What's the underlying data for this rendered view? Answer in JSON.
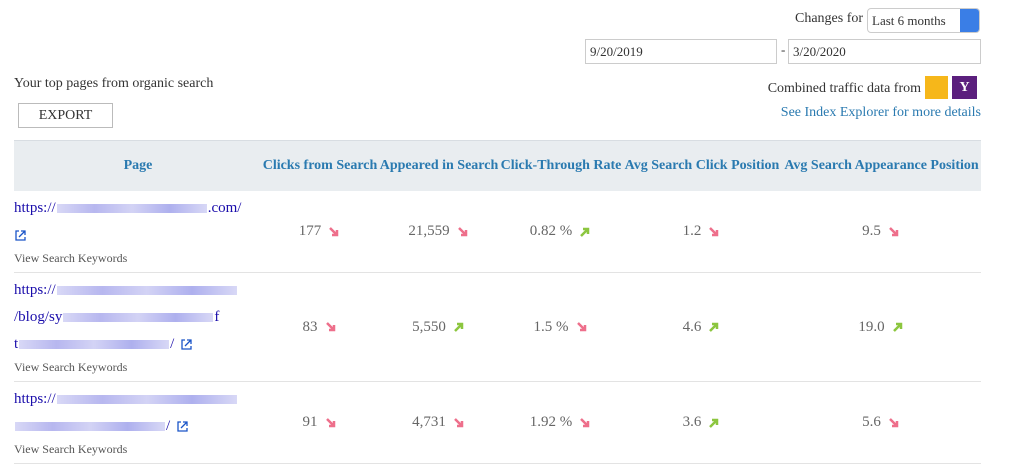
{
  "controls": {
    "changes_for_label": "Changes for",
    "period": "Last 6 months",
    "date_from": "9/20/2019",
    "date_separator": "-",
    "date_to": "3/20/2020"
  },
  "header": {
    "title": "Your top pages from organic search",
    "export": "EXPORT",
    "combined_label": "Combined traffic data from",
    "index_link": "See Index Explorer for more details"
  },
  "table": {
    "columns": [
      "Page",
      "Clicks from Search",
      "Appeared in Search",
      "Click-Through Rate",
      "Avg Search Click Position",
      "Avg Search Appearance Position"
    ],
    "rows": [
      {
        "url_lines": [
          [
            {
              "text": "https://",
              "blur_after": true
            },
            {
              "text": ".com/"
            }
          ]
        ],
        "icon_own_line": true,
        "keywords": "View Search Keywords",
        "cells": [
          {
            "text": "177",
            "trend": "down"
          },
          {
            "text": "21,559",
            "trend": "down"
          },
          {
            "text": "0.82 %",
            "trend": "up"
          },
          {
            "text": "1.2",
            "trend": "down"
          },
          {
            "text": "9.5",
            "trend": "down"
          }
        ]
      },
      {
        "url_lines": [
          [
            {
              "text": "https://",
              "blur_after": true
            }
          ],
          [
            {
              "text": "/blog/sy",
              "blur_after": true
            },
            {
              "text": "f"
            }
          ],
          [
            {
              "text": "t",
              "blur_after": true
            },
            {
              "text": "/"
            }
          ]
        ],
        "icon_own_line": false,
        "keywords": "View Search Keywords",
        "cells": [
          {
            "text": "83",
            "trend": "down"
          },
          {
            "text": "5,550",
            "trend": "up"
          },
          {
            "text": "1.5 %",
            "trend": "down"
          },
          {
            "text": "4.6",
            "trend": "up"
          },
          {
            "text": "19.0",
            "trend": "up"
          }
        ]
      },
      {
        "url_lines": [
          [
            {
              "text": "https://",
              "blur_after": true
            }
          ],
          [
            {
              "text": "/",
              "blur_before": true
            }
          ]
        ],
        "icon_own_line": false,
        "keywords": "View Search Keywords",
        "cells": [
          {
            "text": "91",
            "trend": "down"
          },
          {
            "text": "4,731",
            "trend": "down"
          },
          {
            "text": "1.92 %",
            "trend": "down"
          },
          {
            "text": "3.6",
            "trend": "up"
          },
          {
            "text": "5.6",
            "trend": "down"
          }
        ]
      }
    ]
  }
}
